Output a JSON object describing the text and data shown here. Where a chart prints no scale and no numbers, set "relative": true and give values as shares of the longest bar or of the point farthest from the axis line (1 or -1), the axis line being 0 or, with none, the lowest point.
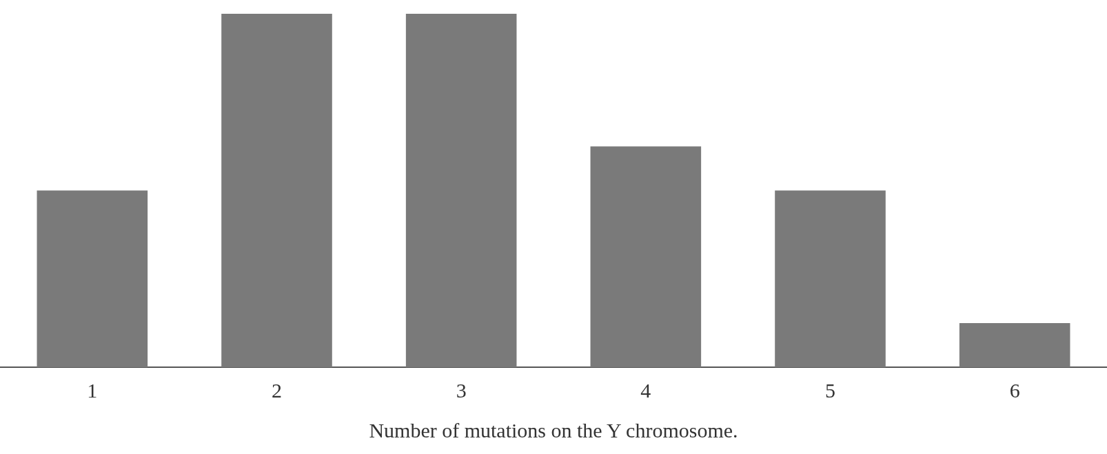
{
  "chart_data": {
    "type": "bar",
    "relative": true,
    "xlabel": "Number of mutations on the Y chromosome.",
    "categories": [
      "1",
      "2",
      "3",
      "4",
      "5",
      "6"
    ],
    "values": [
      0.5,
      1,
      1,
      0.625,
      0.5,
      0.125
    ],
    "color": "#7a7a7a",
    "grid": false,
    "legend": false
  }
}
